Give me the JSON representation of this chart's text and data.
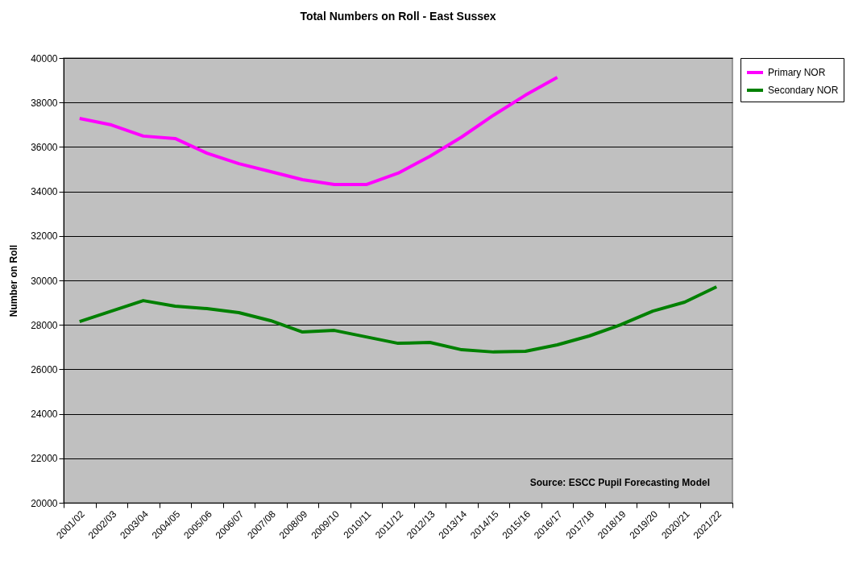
{
  "chart_data": {
    "type": "line",
    "title": "Total Numbers on Roll - East Sussex",
    "ylabel": "Number on Roll",
    "categories": [
      "2001/02",
      "2002/03",
      "2003/04",
      "2004/05",
      "2005/06",
      "2006/07",
      "2007/08",
      "2008/09",
      "2009/10",
      "2010/11",
      "2011/12",
      "2012/13",
      "2013/14",
      "2014/15",
      "2015/16",
      "2016/17",
      "2017/18",
      "2018/19",
      "2019/20",
      "2020/21",
      "2021/22"
    ],
    "series": [
      {
        "name": "Primary NOR",
        "color": "#ff00ff",
        "values": [
          37280,
          36990,
          36490,
          36380,
          35720,
          35250,
          34890,
          34530,
          34310,
          34310,
          34820,
          35580,
          36450,
          37430,
          38330,
          39130,
          null,
          null,
          null,
          null,
          null
        ]
      },
      {
        "name": "Secondary NOR",
        "color": "#008000",
        "values": [
          28150,
          28620,
          29090,
          28840,
          28730,
          28550,
          28190,
          27680,
          27750,
          27460,
          27170,
          27210,
          26880,
          26780,
          26810,
          27100,
          27500,
          28010,
          28620,
          29020,
          29710
        ]
      }
    ],
    "ylim": [
      20000,
      40000
    ],
    "yticks": [
      20000,
      22000,
      24000,
      26000,
      28000,
      30000,
      32000,
      34000,
      36000,
      38000,
      40000
    ],
    "grid": "y",
    "legend": "right",
    "marker": "none",
    "line_style": "solid",
    "annotations": [
      "Source:  ESCC Pupil Forecasting Model"
    ]
  }
}
